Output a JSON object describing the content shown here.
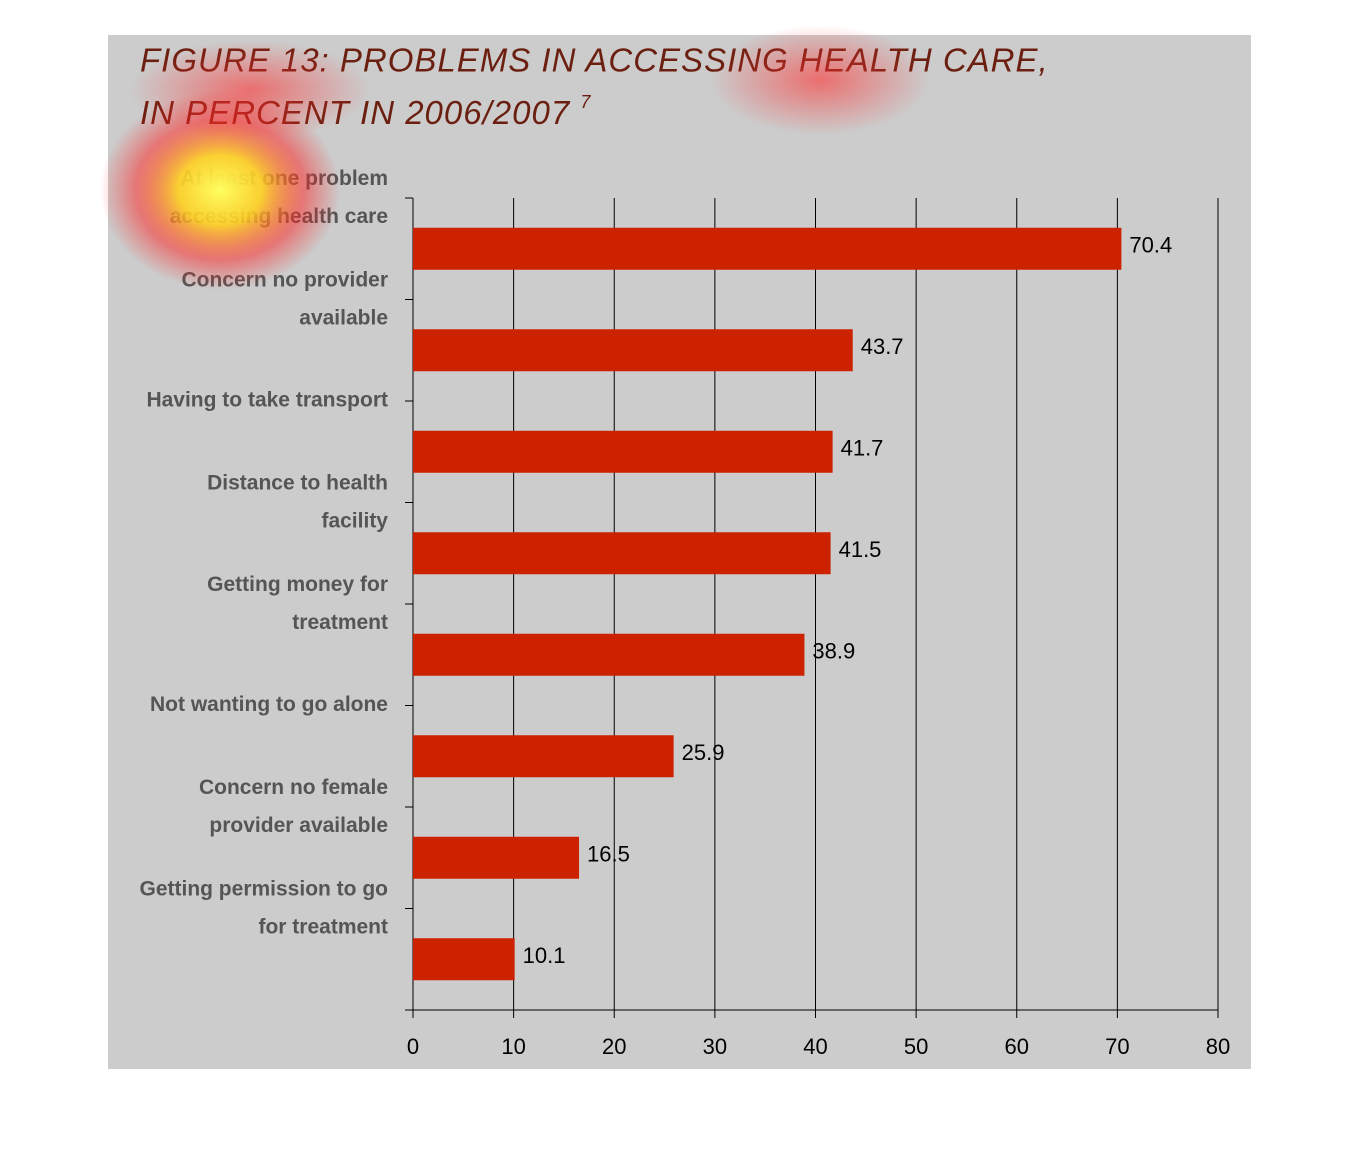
{
  "chart_data": {
    "type": "barh",
    "title": [
      "FIGURE 13:  PROBLEMS IN ACCESSING HEALTH CARE,",
      "IN PERCENT  IN 2006/2007"
    ],
    "title_note": "7",
    "categories": [
      "At least one problem accessing health care",
      "Concern no provider available",
      "Having to take transport",
      "Distance to health facility",
      "Getting money for treatment",
      "Not wanting to go alone",
      "Concern no female provider available",
      "Getting permission to go for treatment"
    ],
    "values": [
      70.4,
      43.7,
      41.7,
      41.5,
      38.9,
      25.9,
      16.5,
      10.1
    ],
    "color": "#cc2200",
    "xlim": [
      0,
      80
    ],
    "xticks": [
      0,
      10,
      20,
      30,
      40,
      50,
      60,
      70,
      80
    ],
    "grid": true
  }
}
